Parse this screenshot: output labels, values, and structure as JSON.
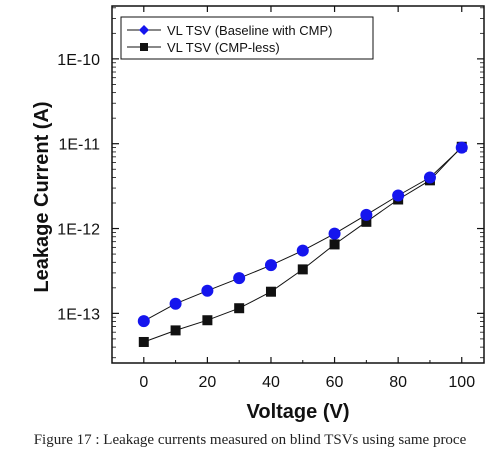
{
  "chart_data": {
    "type": "line",
    "title": "",
    "xlabel": "Voltage (V)",
    "ylabel": "Leakage Current (A)",
    "y_scale": "log",
    "xlim": [
      -10,
      107
    ],
    "ylim": [
      2.6e-14,
      4.2e-10
    ],
    "x_ticks": [
      0,
      20,
      40,
      60,
      80,
      100
    ],
    "y_ticks": [
      {
        "value": 1e-13,
        "label": "1E-13"
      },
      {
        "value": 1e-12,
        "label": "1E-12"
      },
      {
        "value": 1e-11,
        "label": "1E-11"
      },
      {
        "value": 1e-10,
        "label": "1E-10"
      }
    ],
    "grid": false,
    "legend_position": "top-left",
    "series": [
      {
        "name": "VL TSV (Baseline with CMP)",
        "color": "#1515ee",
        "marker": "circle",
        "x": [
          0,
          10,
          20,
          30,
          40,
          50,
          60,
          70,
          80,
          90,
          100
        ],
        "values": [
          8.1e-14,
          1.3e-13,
          1.85e-13,
          2.6e-13,
          3.7e-13,
          5.5e-13,
          8.7e-13,
          1.45e-12,
          2.45e-12,
          4e-12,
          9e-12
        ]
      },
      {
        "name": "VL TSV (CMP-less)",
        "color": "#111111",
        "marker": "square",
        "x": [
          0,
          10,
          20,
          30,
          40,
          50,
          60,
          70,
          80,
          90,
          100
        ],
        "values": [
          4.6e-14,
          6.3e-14,
          8.3e-14,
          1.15e-13,
          1.8e-13,
          3.3e-13,
          6.5e-13,
          1.2e-12,
          2.2e-12,
          3.7e-12,
          9.2e-12
        ]
      }
    ]
  },
  "caption": "Figure 17 : Leakage currents measured on blind TSVs using same proce"
}
